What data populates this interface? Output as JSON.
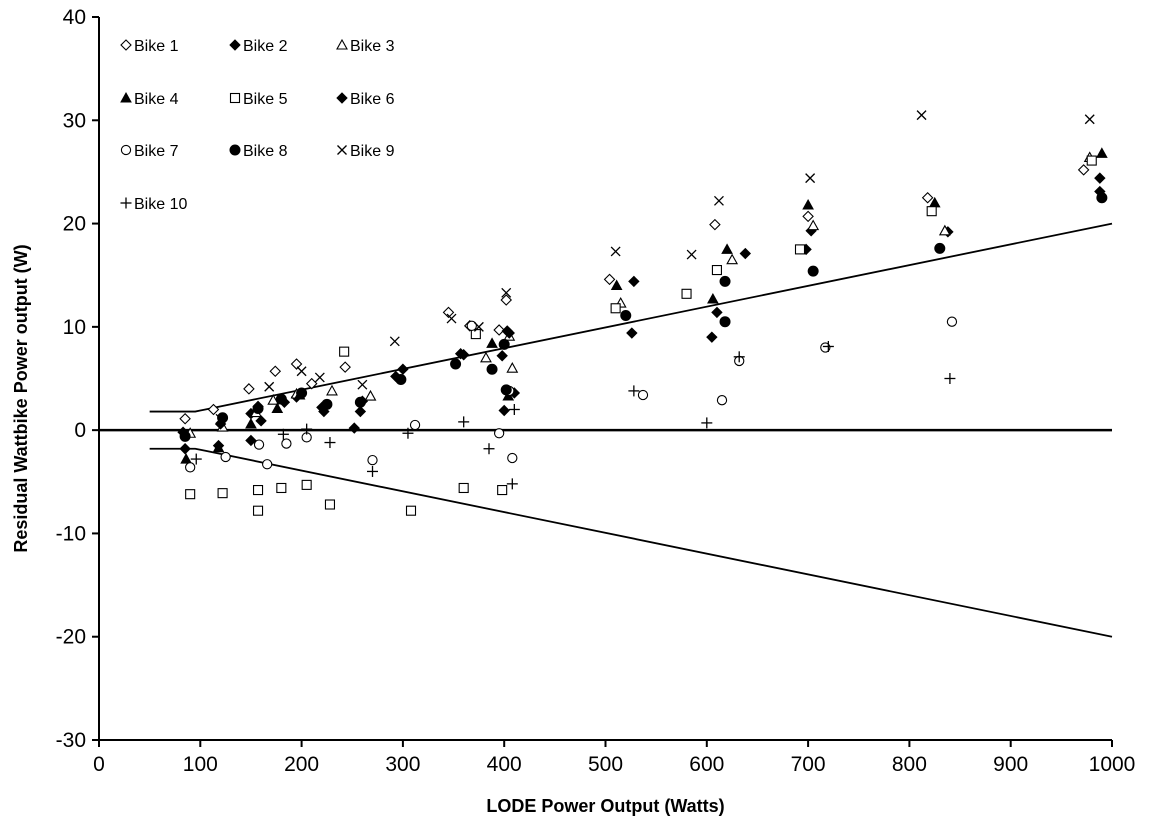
{
  "chart_data": {
    "type": "scatter",
    "title": "",
    "xlabel": "LODE Power Output (Watts)",
    "ylabel": "Residual Wattbike Power output (W)",
    "xlim": [
      0,
      1000
    ],
    "ylim": [
      -30,
      40
    ],
    "x_ticks": [
      "0",
      "100",
      "200",
      "300",
      "400",
      "500",
      "600",
      "700",
      "800",
      "900",
      "1000"
    ],
    "y_ticks": [
      "40",
      "30",
      "20",
      "10",
      "0",
      "-10",
      "-20",
      "-30"
    ],
    "grid": false,
    "legend_position": "top-left",
    "series": [
      {
        "name": "Bike 1",
        "marker": "diamond-open",
        "points": [
          [
            85,
            1.1
          ],
          [
            113,
            2.0
          ],
          [
            148,
            4.0
          ],
          [
            174,
            5.7
          ],
          [
            195,
            6.4
          ],
          [
            210,
            4.5
          ],
          [
            243,
            6.1
          ],
          [
            345,
            11.4
          ],
          [
            366,
            10.1
          ],
          [
            395,
            9.7
          ],
          [
            402,
            12.6
          ],
          [
            504,
            14.6
          ],
          [
            608,
            19.9
          ],
          [
            700,
            20.7
          ],
          [
            818,
            22.5
          ],
          [
            972,
            25.2
          ]
        ]
      },
      {
        "name": "Bike 2",
        "marker": "diamond-filled",
        "points": [
          [
            85,
            -1.8
          ],
          [
            118,
            -1.5
          ],
          [
            150,
            1.6
          ],
          [
            160,
            0.9
          ],
          [
            195,
            3.2
          ],
          [
            222,
            1.8
          ],
          [
            252,
            0.2
          ],
          [
            258,
            1.8
          ],
          [
            357,
            7.4
          ],
          [
            398,
            7.2
          ],
          [
            403,
            9.6
          ],
          [
            410,
            3.6
          ],
          [
            526,
            9.4
          ],
          [
            528,
            14.4
          ],
          [
            605,
            9.0
          ],
          [
            610,
            11.4
          ],
          [
            638,
            17.1
          ],
          [
            698,
            17.5
          ],
          [
            703,
            19.3
          ],
          [
            838,
            19.2
          ],
          [
            988,
            24.4
          ]
        ]
      },
      {
        "name": "Bike 3",
        "marker": "triangle-open",
        "points": [
          [
            90,
            -0.3
          ],
          [
            122,
            0.3
          ],
          [
            155,
            1.7
          ],
          [
            172,
            2.9
          ],
          [
            195,
            3.5
          ],
          [
            230,
            3.8
          ],
          [
            268,
            3.3
          ],
          [
            382,
            7.0
          ],
          [
            405,
            9.1
          ],
          [
            408,
            6.0
          ],
          [
            515,
            12.3
          ],
          [
            625,
            16.5
          ],
          [
            705,
            19.8
          ],
          [
            835,
            19.3
          ],
          [
            978,
            26.4
          ]
        ]
      },
      {
        "name": "Bike 4",
        "marker": "triangle-filled",
        "points": [
          [
            86,
            -2.8
          ],
          [
            118,
            -1.7
          ],
          [
            150,
            0.6
          ],
          [
            176,
            2.1
          ],
          [
            198,
            3.4
          ],
          [
            388,
            8.4
          ],
          [
            404,
            3.3
          ],
          [
            511,
            14.0
          ],
          [
            606,
            12.7
          ],
          [
            620,
            17.5
          ],
          [
            700,
            21.8
          ],
          [
            825,
            22.0
          ],
          [
            990,
            26.8
          ]
        ]
      },
      {
        "name": "Bike 5",
        "marker": "square-open",
        "points": [
          [
            90,
            -6.2
          ],
          [
            122,
            -6.1
          ],
          [
            157,
            -5.8
          ],
          [
            157,
            -7.8
          ],
          [
            180,
            -5.6
          ],
          [
            205,
            -5.3
          ],
          [
            228,
            -7.2
          ],
          [
            242,
            7.6
          ],
          [
            308,
            -7.8
          ],
          [
            360,
            -5.6
          ],
          [
            372,
            9.3
          ],
          [
            398,
            -5.8
          ],
          [
            510,
            11.8
          ],
          [
            580,
            13.2
          ],
          [
            610,
            15.5
          ],
          [
            692,
            17.5
          ],
          [
            822,
            21.2
          ],
          [
            980,
            26.1
          ]
        ]
      },
      {
        "name": "Bike 6",
        "marker": "diamond-filled",
        "points": [
          [
            83,
            -0.2
          ],
          [
            120,
            0.6
          ],
          [
            150,
            -1.0
          ],
          [
            157,
            2.3
          ],
          [
            183,
            2.7
          ],
          [
            220,
            2.2
          ],
          [
            260,
            2.8
          ],
          [
            293,
            5.2
          ],
          [
            300,
            5.9
          ],
          [
            360,
            7.3
          ],
          [
            400,
            1.9
          ],
          [
            405,
            9.4
          ],
          [
            988,
            23.1
          ]
        ]
      },
      {
        "name": "Bike 7",
        "marker": "circle-open",
        "points": [
          [
            90,
            -3.6
          ],
          [
            125,
            -2.6
          ],
          [
            158,
            -1.4
          ],
          [
            166,
            -3.3
          ],
          [
            185,
            -1.3
          ],
          [
            205,
            -0.7
          ],
          [
            270,
            -2.9
          ],
          [
            312,
            0.5
          ],
          [
            368,
            10.1
          ],
          [
            395,
            -0.3
          ],
          [
            405,
            3.8
          ],
          [
            408,
            -2.7
          ],
          [
            537,
            3.4
          ],
          [
            615,
            2.9
          ],
          [
            632,
            6.7
          ],
          [
            717,
            8.0
          ],
          [
            842,
            10.5
          ]
        ]
      },
      {
        "name": "Bike 8",
        "marker": "circle-filled",
        "points": [
          [
            85,
            -0.6
          ],
          [
            122,
            1.2
          ],
          [
            157,
            2.1
          ],
          [
            180,
            3.0
          ],
          [
            200,
            3.6
          ],
          [
            225,
            2.5
          ],
          [
            258,
            2.7
          ],
          [
            298,
            4.9
          ],
          [
            352,
            6.4
          ],
          [
            388,
            5.9
          ],
          [
            400,
            8.3
          ],
          [
            402,
            3.9
          ],
          [
            520,
            11.1
          ],
          [
            618,
            14.4
          ],
          [
            618,
            10.5
          ],
          [
            705,
            15.4
          ],
          [
            830,
            17.6
          ],
          [
            990,
            22.5
          ]
        ]
      },
      {
        "name": "Bike 9",
        "marker": "x",
        "points": [
          [
            120,
            1.1
          ],
          [
            168,
            4.2
          ],
          [
            200,
            5.7
          ],
          [
            218,
            5.1
          ],
          [
            260,
            4.4
          ],
          [
            292,
            8.6
          ],
          [
            348,
            10.8
          ],
          [
            375,
            10.0
          ],
          [
            402,
            13.3
          ],
          [
            510,
            17.3
          ],
          [
            585,
            17.0
          ],
          [
            612,
            22.2
          ],
          [
            702,
            24.4
          ],
          [
            812,
            30.5
          ],
          [
            978,
            30.1
          ]
        ]
      },
      {
        "name": "Bike 10",
        "marker": "plus",
        "points": [
          [
            96,
            -2.8
          ],
          [
            182,
            -0.4
          ],
          [
            205,
            0.1
          ],
          [
            228,
            -1.2
          ],
          [
            270,
            -4.0
          ],
          [
            305,
            -0.3
          ],
          [
            360,
            0.8
          ],
          [
            385,
            -1.8
          ],
          [
            408,
            -5.2
          ],
          [
            410,
            2.0
          ],
          [
            528,
            3.8
          ],
          [
            600,
            0.7
          ],
          [
            632,
            7.1
          ],
          [
            720,
            8.1
          ],
          [
            840,
            5.0
          ]
        ]
      }
    ],
    "lines": [
      {
        "name": "",
        "points": [
          [
            50,
            1.8
          ],
          [
            95,
            1.8
          ],
          [
            100,
            1.9
          ],
          [
            105,
            2.0
          ],
          [
            1000,
            20.0
          ]
        ]
      },
      {
        "name": "",
        "points": [
          [
            50,
            -1.8
          ],
          [
            95,
            -1.8
          ],
          [
            100,
            -1.9
          ],
          [
            105,
            -2.0
          ],
          [
            1000,
            -20.0
          ]
        ]
      },
      {
        "name": "",
        "points": [
          [
            0,
            0
          ],
          [
            1000,
            0
          ]
        ]
      }
    ]
  }
}
